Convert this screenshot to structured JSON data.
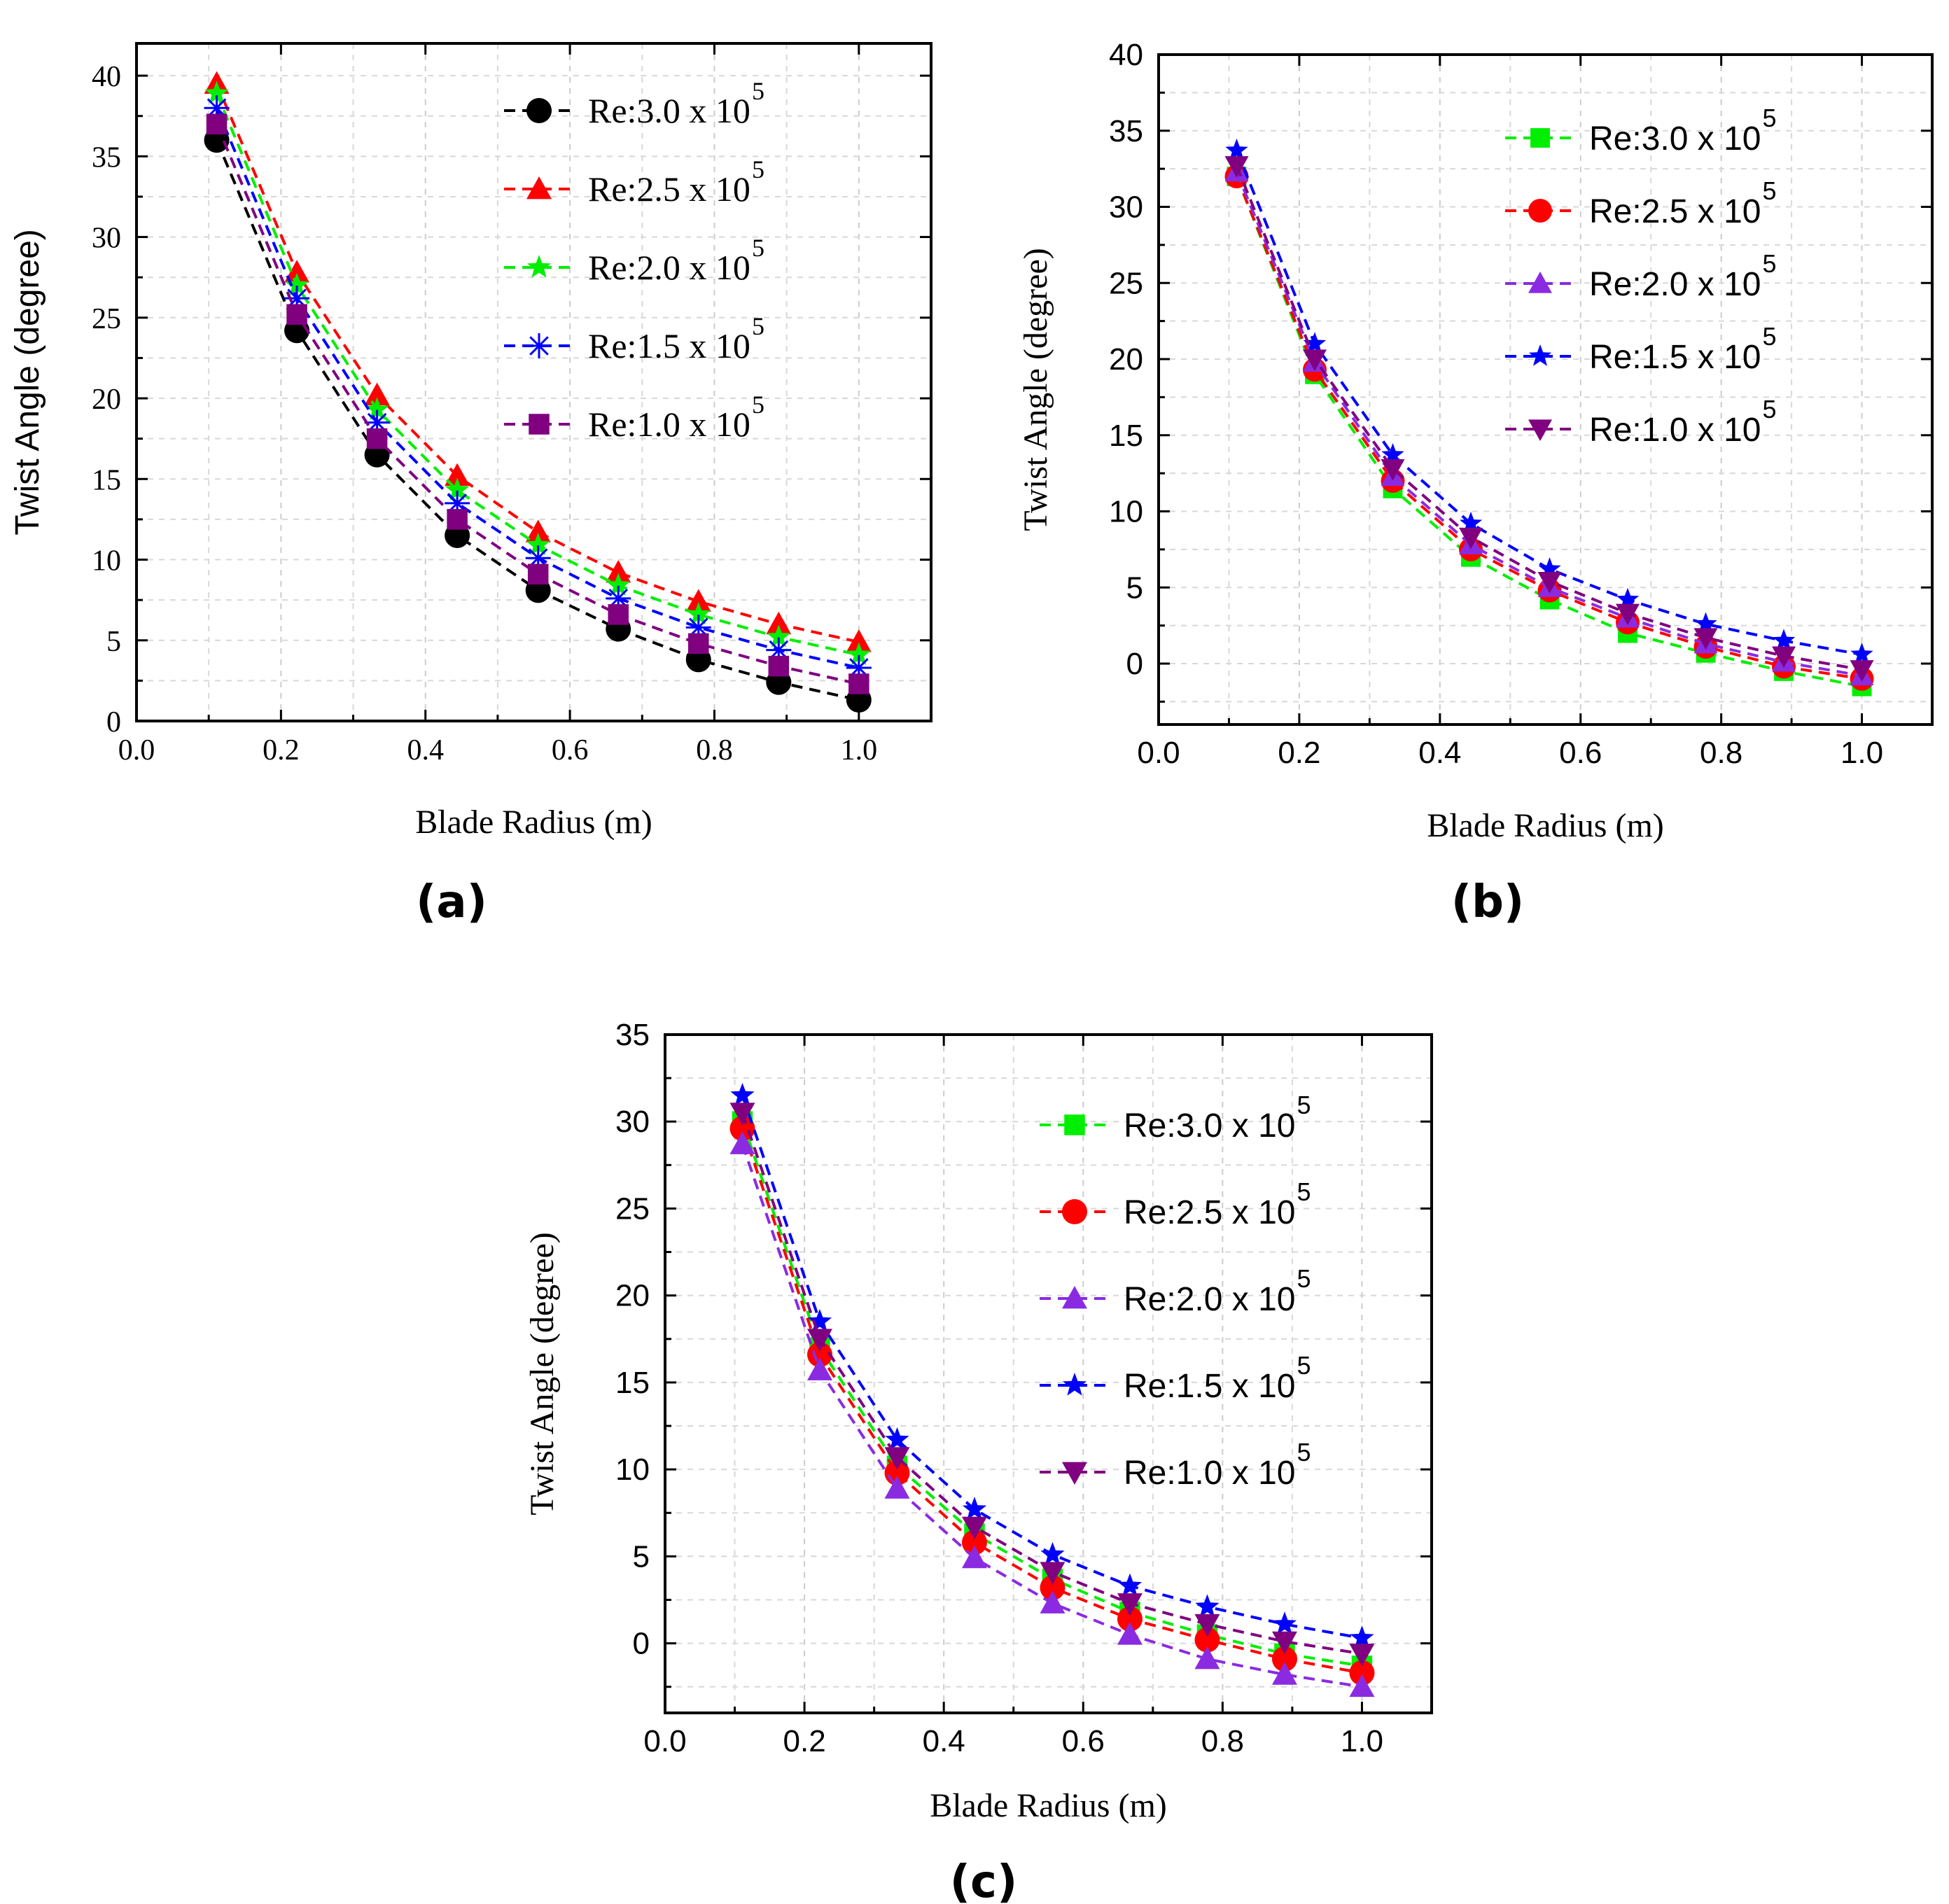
{
  "figure": {
    "panel_labels": [
      "(a)",
      "(b)",
      "(c)"
    ]
  },
  "chart_data": [
    {
      "type": "line",
      "panel": "(a)",
      "xlabel": "Blade Radius (m)",
      "ylabel": "Twist Angle (degree)",
      "xlim": [
        0.0,
        1.1
      ],
      "ylim": [
        0,
        42
      ],
      "xticks": [
        "0.0",
        "0.2",
        "0.4",
        "0.6",
        "0.8",
        "1.0"
      ],
      "yticks": [
        "0",
        "5",
        "10",
        "15",
        "20",
        "25",
        "30",
        "35",
        "40"
      ],
      "grid": true,
      "legend_position": "top-right",
      "x": [
        0.111,
        0.222,
        0.333,
        0.444,
        0.556,
        0.667,
        0.778,
        0.889,
        1.0
      ],
      "series": [
        {
          "name": "Re:3.0 x 10",
          "exp": "5",
          "color": "#000000",
          "marker": "circle",
          "values": [
            36.0,
            24.2,
            16.5,
            11.5,
            8.1,
            5.7,
            3.8,
            2.4,
            1.3
          ]
        },
        {
          "name": "Re:2.5 x 10",
          "exp": "5",
          "color": "#ff0000",
          "marker": "triangle-up",
          "values": [
            39.5,
            27.8,
            20.2,
            15.2,
            11.7,
            9.2,
            7.4,
            6.0,
            4.9
          ]
        },
        {
          "name": "Re:2.0 x 10",
          "exp": "5",
          "color": "#00ee00",
          "marker": "star",
          "values": [
            38.9,
            27.0,
            19.3,
            14.3,
            10.9,
            8.4,
            6.6,
            5.2,
            4.1
          ]
        },
        {
          "name": "Re:1.5 x 10",
          "exp": "5",
          "color": "#0000ff",
          "marker": "asterisk",
          "values": [
            38.0,
            26.2,
            18.5,
            13.5,
            10.1,
            7.6,
            5.8,
            4.4,
            3.3
          ]
        },
        {
          "name": "Re:1.0 x 10",
          "exp": "5",
          "color": "#800080",
          "marker": "square",
          "values": [
            37.0,
            25.2,
            17.5,
            12.5,
            9.1,
            6.6,
            4.8,
            3.4,
            2.3
          ]
        }
      ]
    },
    {
      "type": "line",
      "panel": "(b)",
      "xlabel": "Blade Radius (m)",
      "ylabel": "Twist Angle (degree)",
      "xlim": [
        0.0,
        1.1
      ],
      "ylim": [
        -4,
        40
      ],
      "xticks": [
        "0.0",
        "0.2",
        "0.4",
        "0.6",
        "0.8",
        "1.0"
      ],
      "yticks": [
        "0",
        "5",
        "10",
        "15",
        "20",
        "25",
        "30",
        "35",
        "40"
      ],
      "grid": true,
      "legend_position": "top-right",
      "x": [
        0.111,
        0.222,
        0.333,
        0.444,
        0.556,
        0.667,
        0.778,
        0.889,
        1.0
      ],
      "series": [
        {
          "name": "Re:3.0 x 10",
          "exp": "5",
          "color": "#00ee00",
          "marker": "square",
          "values": [
            32.0,
            19.0,
            11.5,
            7.0,
            4.2,
            2.0,
            0.7,
            -0.5,
            -1.5
          ]
        },
        {
          "name": "Re:2.5 x 10",
          "exp": "5",
          "color": "#ff0000",
          "marker": "circle",
          "values": [
            32.0,
            19.3,
            12.0,
            7.5,
            4.8,
            2.7,
            1.1,
            -0.2,
            -1.0
          ]
        },
        {
          "name": "Re:2.0 x 10",
          "exp": "5",
          "color": "#8a2be2",
          "marker": "triangle-up",
          "values": [
            32.3,
            19.8,
            12.3,
            7.8,
            5.0,
            3.0,
            1.3,
            0.1,
            -0.8
          ]
        },
        {
          "name": "Re:1.5 x 10",
          "exp": "5",
          "color": "#0000ff",
          "marker": "star",
          "values": [
            33.7,
            21.0,
            13.7,
            9.2,
            6.2,
            4.2,
            2.6,
            1.5,
            0.6
          ]
        },
        {
          "name": "Re:1.0 x 10",
          "exp": "5",
          "color": "#800080",
          "marker": "triangle-down",
          "values": [
            32.7,
            20.0,
            12.8,
            8.3,
            5.4,
            3.3,
            1.7,
            0.5,
            -0.4
          ]
        }
      ]
    },
    {
      "type": "line",
      "panel": "(c)",
      "xlabel": "Blade Radius (m)",
      "ylabel": "Twist Angle (degree)",
      "xlim": [
        0.0,
        1.1
      ],
      "ylim": [
        -4,
        35
      ],
      "xticks": [
        "0.0",
        "0.2",
        "0.4",
        "0.6",
        "0.8",
        "1.0"
      ],
      "yticks": [
        "0",
        "5",
        "10",
        "15",
        "20",
        "25",
        "30",
        "35"
      ],
      "grid": true,
      "legend_position": "right",
      "x": [
        0.111,
        0.222,
        0.333,
        0.444,
        0.556,
        0.667,
        0.778,
        0.889,
        1.0
      ],
      "series": [
        {
          "name": "Re:3.0 x 10",
          "exp": "5",
          "color": "#00ee00",
          "marker": "square",
          "values": [
            30.0,
            17.0,
            10.2,
            6.3,
            3.7,
            1.8,
            0.5,
            -0.6,
            -1.3
          ]
        },
        {
          "name": "Re:2.5 x 10",
          "exp": "5",
          "color": "#ff0000",
          "marker": "circle",
          "values": [
            29.6,
            16.6,
            9.8,
            5.8,
            3.2,
            1.4,
            0.2,
            -0.9,
            -1.7
          ]
        },
        {
          "name": "Re:2.0 x 10",
          "exp": "5",
          "color": "#8a2be2",
          "marker": "triangle-up",
          "values": [
            28.7,
            15.7,
            8.9,
            4.9,
            2.3,
            0.5,
            -0.9,
            -1.8,
            -2.5
          ]
        },
        {
          "name": "Re:1.5 x 10",
          "exp": "5",
          "color": "#0000ff",
          "marker": "star",
          "values": [
            31.5,
            18.5,
            11.7,
            7.7,
            5.1,
            3.3,
            2.1,
            1.1,
            0.3
          ]
        },
        {
          "name": "Re:1.0 x 10",
          "exp": "5",
          "color": "#800080",
          "marker": "triangle-down",
          "values": [
            30.5,
            17.5,
            10.7,
            6.7,
            4.1,
            2.3,
            1.1,
            0.1,
            -0.6
          ]
        }
      ]
    }
  ]
}
